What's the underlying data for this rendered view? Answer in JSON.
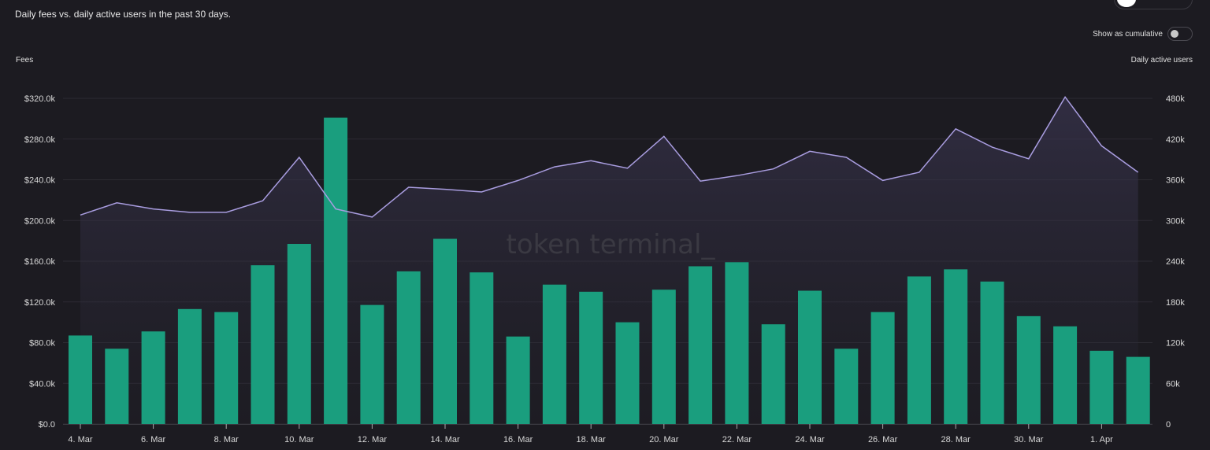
{
  "header": {
    "subtitle": "Daily fees vs. daily active users in the past 30 days.",
    "cumulative_label": "Show as cumulative",
    "cumulative_on": false
  },
  "colors": {
    "bar": "#1a9e7e",
    "line": "#a99de0",
    "grid": "#2c2b32",
    "background": "#1c1b21"
  },
  "watermark": "token terminal_",
  "chart_data": {
    "type": "bar+line",
    "title": "Daily fees vs. daily active users in the past 30 days.",
    "ylabel_left": "Fees",
    "ylabel_right": "Daily active users",
    "ylim_left": [
      0,
      320000
    ],
    "ylim_right": [
      0,
      480000
    ],
    "yticks_left": [
      "$0.0",
      "$40.0k",
      "$80.0k",
      "$120.0k",
      "$160.0k",
      "$200.0k",
      "$240.0k",
      "$280.0k",
      "$320.0k"
    ],
    "yticks_right": [
      "0",
      "60k",
      "120k",
      "180k",
      "240k",
      "300k",
      "360k",
      "420k",
      "480k"
    ],
    "xticks": [
      "4. Mar",
      "6. Mar",
      "8. Mar",
      "10. Mar",
      "12. Mar",
      "14. Mar",
      "16. Mar",
      "18. Mar",
      "20. Mar",
      "22. Mar",
      "24. Mar",
      "26. Mar",
      "28. Mar",
      "30. Mar",
      "1. Apr"
    ],
    "grid": true,
    "categories": [
      "4 Mar",
      "5 Mar",
      "6 Mar",
      "7 Mar",
      "8 Mar",
      "9 Mar",
      "10 Mar",
      "11 Mar",
      "12 Mar",
      "13 Mar",
      "14 Mar",
      "15 Mar",
      "16 Mar",
      "17 Mar",
      "18 Mar",
      "19 Mar",
      "20 Mar",
      "21 Mar",
      "22 Mar",
      "23 Mar",
      "24 Mar",
      "25 Mar",
      "26 Mar",
      "27 Mar",
      "28 Mar",
      "29 Mar",
      "30 Mar",
      "31 Mar",
      "1 Apr",
      "2 Apr"
    ],
    "series": [
      {
        "name": "Fees",
        "type": "bar",
        "axis": "left",
        "values": [
          87000,
          74000,
          91000,
          113000,
          110000,
          156000,
          177000,
          301000,
          117000,
          150000,
          182000,
          149000,
          86000,
          137000,
          130000,
          100000,
          132000,
          155000,
          159000,
          98000,
          131000,
          74000,
          110000,
          145000,
          152000,
          140000,
          106000,
          96000,
          72000,
          66000
        ]
      },
      {
        "name": "Daily active users",
        "type": "area-line",
        "axis": "right",
        "values": [
          308000,
          326000,
          317000,
          312000,
          312000,
          329000,
          393000,
          317000,
          305000,
          349000,
          346000,
          342000,
          359000,
          379000,
          388000,
          377000,
          424000,
          358000,
          366000,
          376000,
          402000,
          393000,
          359000,
          371000,
          435000,
          408000,
          391000,
          482000,
          410000,
          371000
        ]
      }
    ]
  }
}
